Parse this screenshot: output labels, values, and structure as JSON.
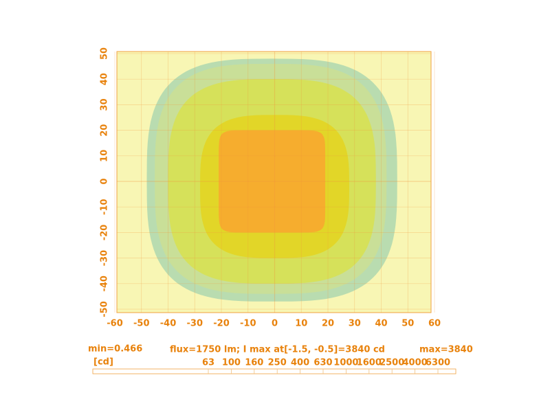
{
  "chart_data": {
    "type": "contour",
    "xlim": [
      -60,
      60
    ],
    "xticks": [
      -60,
      -50,
      -40,
      -30,
      -20,
      -10,
      0,
      10,
      20,
      30,
      40,
      50,
      60
    ],
    "ylim": [
      -50,
      50
    ],
    "yticks": [
      -50,
      -40,
      -30,
      -20,
      -10,
      0,
      10,
      20,
      30,
      40,
      50
    ],
    "grid": true,
    "background": "#f8f6b4",
    "regions": [
      {
        "color": "#b9dcb0",
        "xlim": [
          -48,
          46
        ],
        "ylim": [
          -47,
          48
        ]
      },
      {
        "color": "#c9df98",
        "xlim": [
          -45,
          42
        ],
        "ylim": [
          -44,
          46
        ]
      },
      {
        "color": "#d6e15a",
        "xlim": [
          -40,
          38
        ],
        "ylim": [
          -40,
          40
        ]
      },
      {
        "color": "#e2d628",
        "xlim": [
          -28,
          28
        ],
        "ylim": [
          -30,
          26
        ]
      },
      {
        "color": "#f6ad2e",
        "xlim": [
          -21,
          19
        ],
        "ylim": [
          -20,
          20
        ]
      }
    ],
    "min_label": "min=0.466",
    "summary": "flux=1750 lm; I max  at[-1.5, -0.5]=3840 cd",
    "max_label": "max=3840",
    "unit": "[cd]",
    "levels": [
      63,
      100,
      160,
      250,
      400,
      630,
      1000,
      1600,
      2500,
      4000,
      6300
    ]
  }
}
